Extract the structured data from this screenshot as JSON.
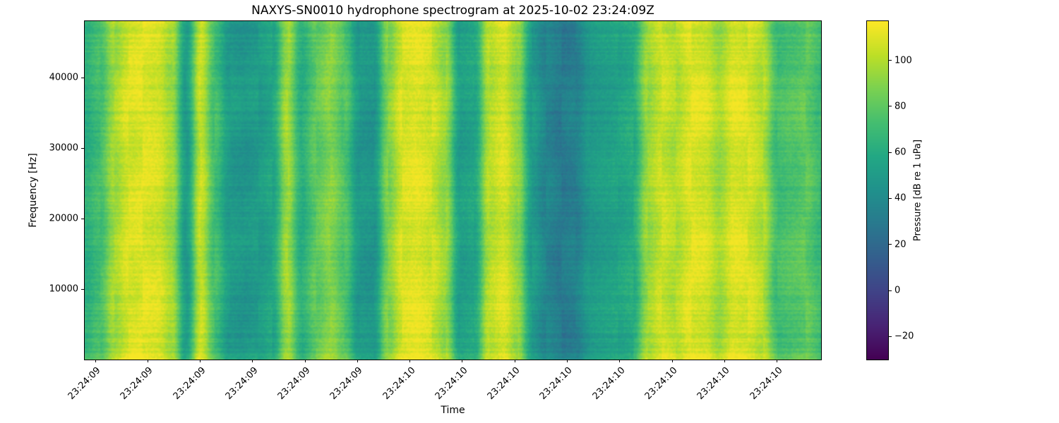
{
  "chart_data": {
    "type": "heatmap",
    "variant": "spectrogram",
    "title": "NAXYS-SN0010 hydrophone spectrogram at 2025-10-02 23:24:09Z",
    "xlabel": "Time",
    "ylabel": "Frequency [Hz]",
    "colormap": "viridis",
    "x_tick_labels": [
      "23:24:09",
      "23:24:09",
      "23:24:09",
      "23:24:09",
      "23:24:09",
      "23:24:09",
      "23:24:10",
      "23:24:10",
      "23:24:10",
      "23:24:10",
      "23:24:10",
      "23:24:10",
      "23:24:10",
      "23:24:10"
    ],
    "y_ticks": [
      {
        "label": "10000",
        "value": 10000
      },
      {
        "label": "20000",
        "value": 20000
      },
      {
        "label": "30000",
        "value": 30000
      },
      {
        "label": "40000",
        "value": 40000
      }
    ],
    "y_axis_range_hz": [
      0,
      48000
    ],
    "colorbar": {
      "label": "Pressure [dB re 1 uPa]",
      "vmin": -30,
      "vmax": 117,
      "ticks": [
        {
          "label": "100",
          "value": 100
        },
        {
          "label": "80",
          "value": 80
        },
        {
          "label": "60",
          "value": 60
        },
        {
          "label": "40",
          "value": 40
        },
        {
          "label": "20",
          "value": 20
        },
        {
          "label": "0",
          "value": 0
        },
        {
          "label": "−20",
          "value": -20
        }
      ]
    },
    "time_columns_db": [
      62,
      72,
      96,
      108,
      110,
      108,
      96,
      50,
      104,
      72,
      50,
      47,
      50,
      56,
      96,
      62,
      80,
      90,
      76,
      48,
      46,
      88,
      108,
      111,
      106,
      94,
      52,
      56,
      100,
      108,
      92,
      50,
      36,
      30,
      33,
      48,
      52,
      55,
      60,
      94,
      105,
      100,
      110,
      108,
      96,
      110,
      108,
      100,
      72,
      76,
      80,
      70
    ]
  }
}
